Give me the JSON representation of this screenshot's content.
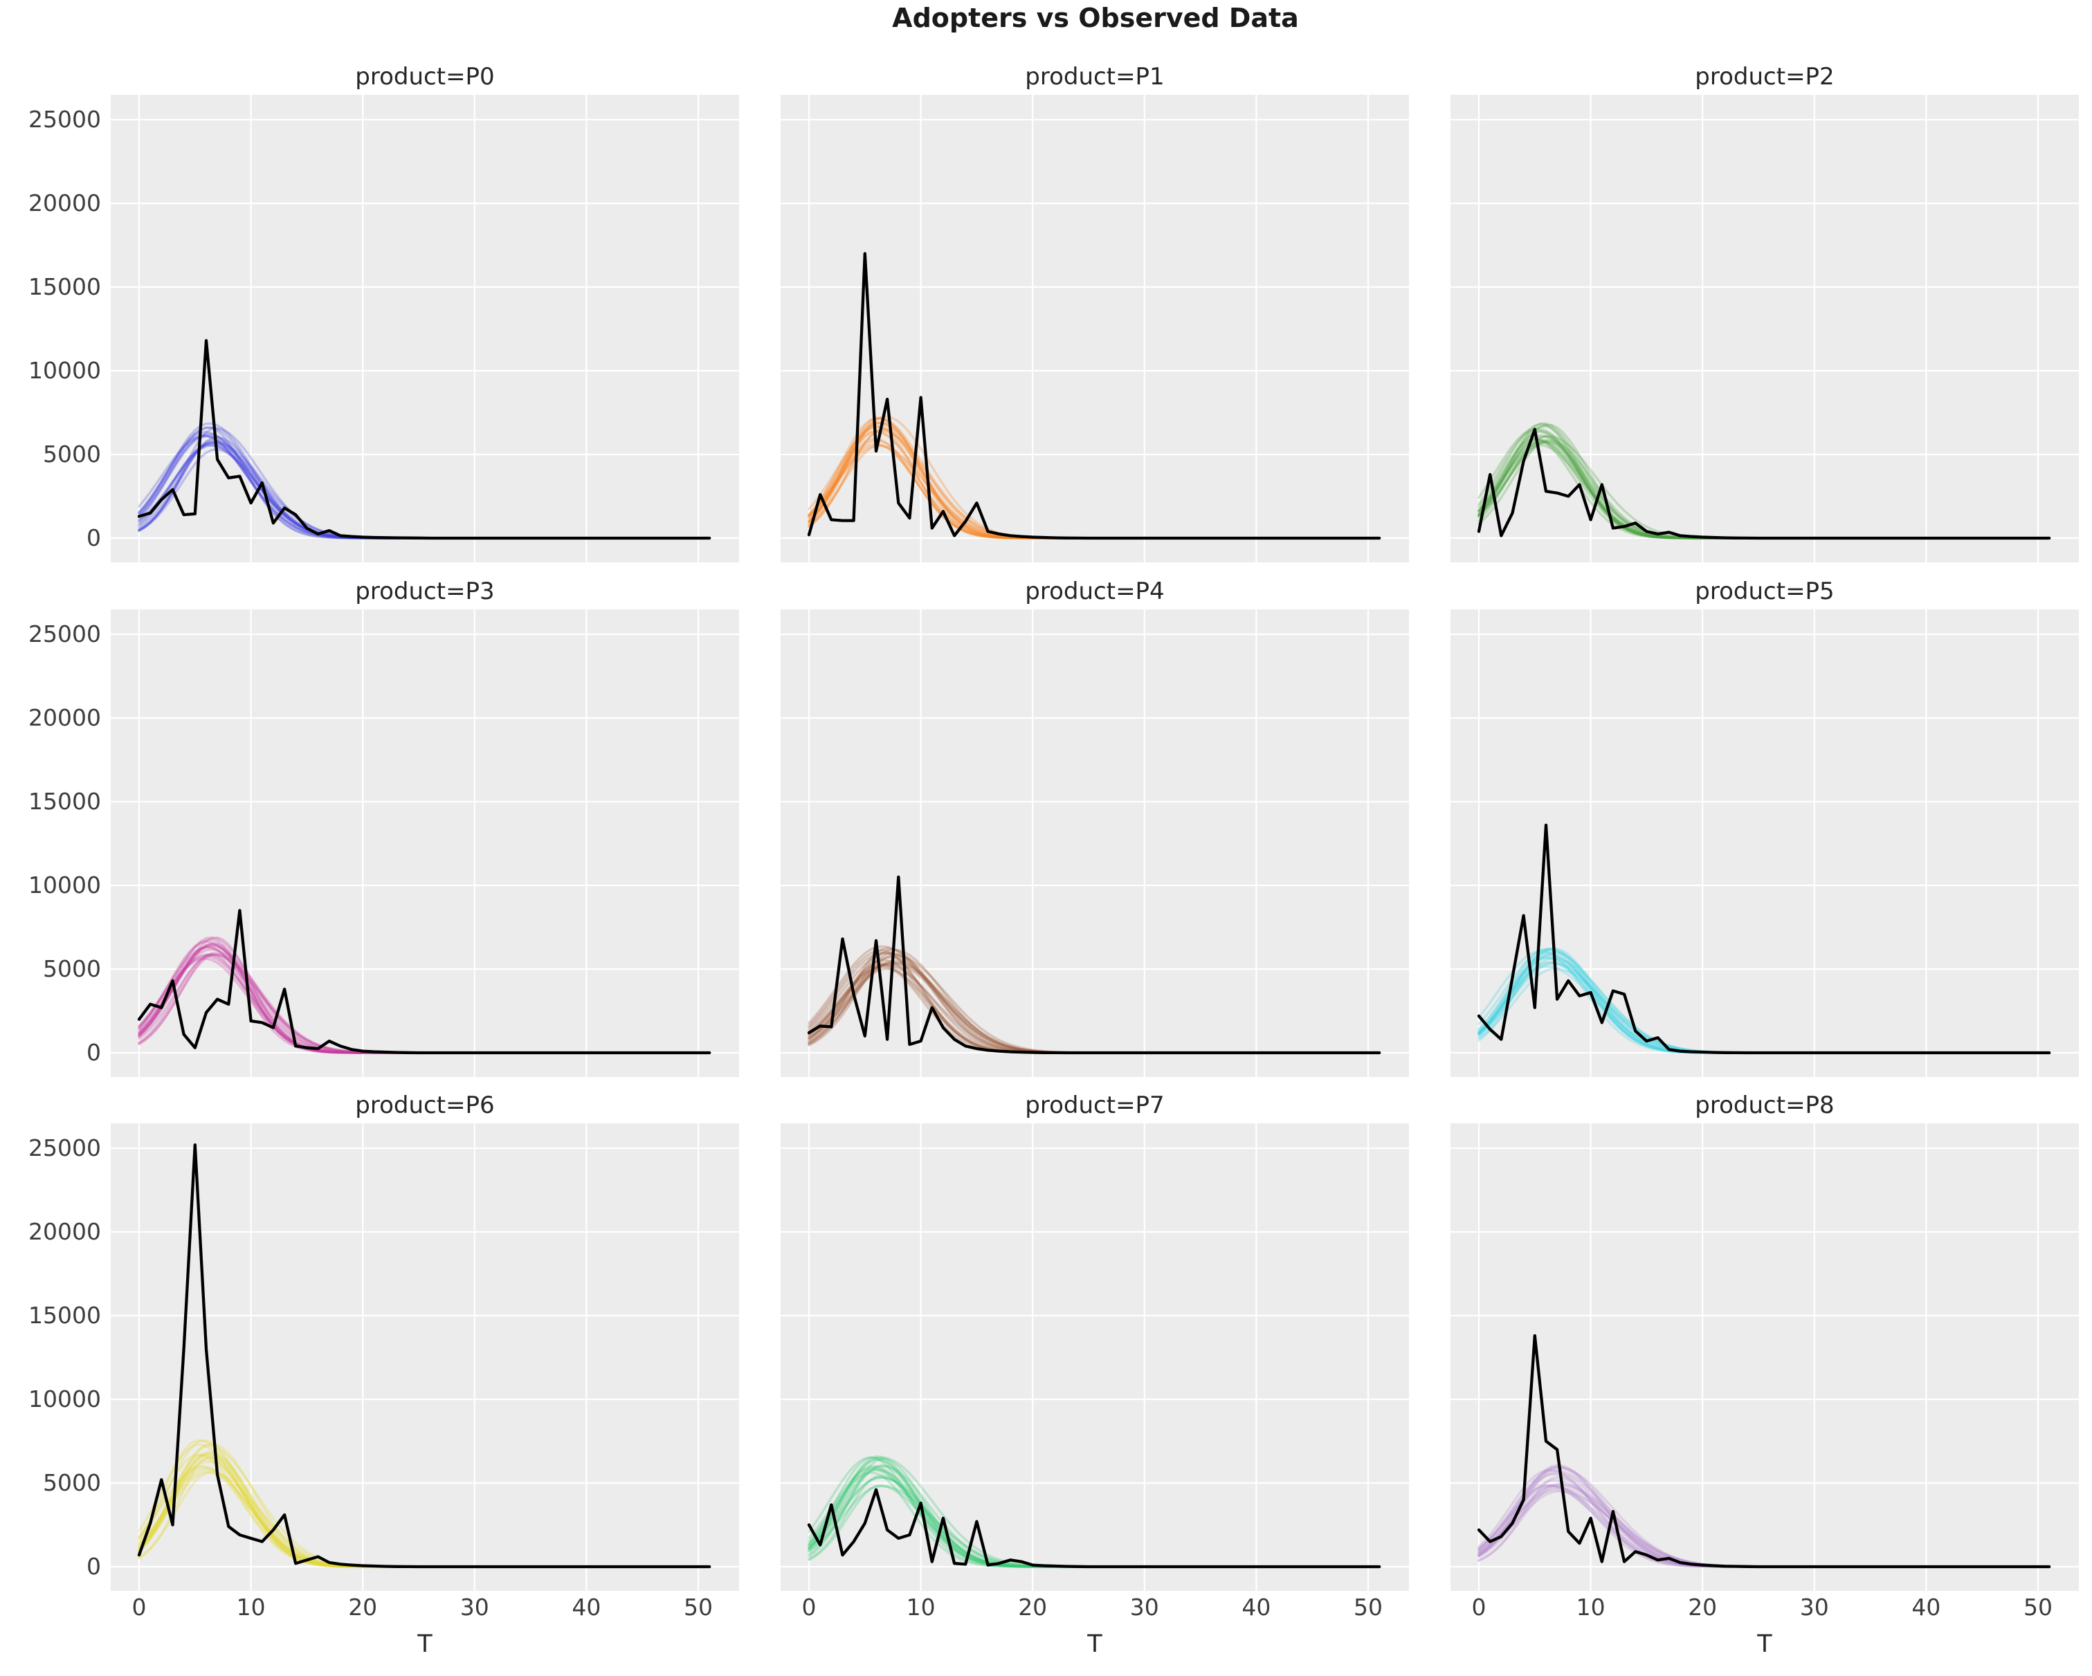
{
  "figure": {
    "title": "Adopters vs Observed Data"
  },
  "style": {
    "axes_bg": "#ececec",
    "grid_color": "#ffffff",
    "observed_color": "#000000",
    "title_color": "#1a1a1a",
    "tick_color": "#3c3c3c"
  },
  "chart_data": {
    "type": "line",
    "title": "Adopters vs Observed Data",
    "xlabel": "T",
    "ylabel": "",
    "x_ticks": [
      0,
      10,
      20,
      30,
      40,
      50
    ],
    "y_ticks": [
      0,
      5000,
      10000,
      15000,
      20000,
      25000
    ],
    "xlim": [
      -2.5,
      53.5
    ],
    "ylim": [
      0,
      26500
    ],
    "grid": true,
    "t_max": 51,
    "facets": [
      {
        "label": "product=P0",
        "color": "#4343e0",
        "observed": [
          1300,
          1500,
          2300,
          2900,
          1400,
          1450,
          11800,
          4700,
          3600,
          3700,
          2100,
          3300,
          900,
          1800,
          1400,
          600,
          250,
          450,
          150,
          100,
          60,
          40,
          30,
          20,
          15,
          10
        ],
        "model": {
          "n_samples": 18,
          "peak_t": 6.3,
          "peak_range": [
            5300,
            7100
          ],
          "sigma_left": 3.3,
          "sigma_right": 3.7
        }
      },
      {
        "label": "product=P1",
        "color": "#f8821c",
        "observed": [
          200,
          2600,
          1100,
          1050,
          1050,
          17000,
          5200,
          8300,
          2100,
          1200,
          8400,
          600,
          1600,
          150,
          1000,
          2100,
          400,
          250,
          150,
          100,
          60,
          40,
          20,
          10,
          5,
          0
        ],
        "model": {
          "n_samples": 18,
          "peak_t": 6.2,
          "peak_range": [
            5300,
            7300
          ],
          "sigma_left": 3.3,
          "sigma_right": 3.6
        }
      },
      {
        "label": "product=P2",
        "color": "#48a23c",
        "observed": [
          400,
          3800,
          150,
          1500,
          4600,
          6500,
          2800,
          2700,
          2500,
          3200,
          1100,
          3200,
          600,
          700,
          900,
          400,
          250,
          350,
          150,
          100,
          60,
          40,
          20,
          10,
          5,
          0
        ],
        "model": {
          "n_samples": 18,
          "peak_t": 5.6,
          "peak_range": [
            4900,
            6900
          ],
          "sigma_left": 3.2,
          "sigma_right": 3.6
        }
      },
      {
        "label": "product=P3",
        "color": "#c6399f",
        "observed": [
          2000,
          2900,
          2700,
          4300,
          1100,
          300,
          2400,
          3200,
          2900,
          8500,
          1900,
          1800,
          1500,
          3800,
          400,
          300,
          250,
          700,
          400,
          200,
          100,
          60,
          40,
          20,
          10,
          0
        ],
        "model": {
          "n_samples": 18,
          "peak_t": 6.4,
          "peak_range": [
            5300,
            7000
          ],
          "sigma_left": 3.4,
          "sigma_right": 3.6
        }
      },
      {
        "label": "product=P4",
        "color": "#975231",
        "observed": [
          1200,
          1600,
          1550,
          6800,
          3500,
          1000,
          6700,
          800,
          10500,
          500,
          700,
          2700,
          1500,
          800,
          400,
          250,
          150,
          100,
          60,
          40,
          20,
          10,
          5,
          0
        ],
        "model": {
          "n_samples": 18,
          "peak_t": 7.0,
          "peak_range": [
            4900,
            6400
          ],
          "sigma_left": 3.6,
          "sigma_right": 4.0
        }
      },
      {
        "label": "product=P5",
        "color": "#3fd4e4",
        "observed": [
          2200,
          1400,
          800,
          4500,
          8200,
          2700,
          13600,
          3200,
          4300,
          3400,
          3600,
          1800,
          3700,
          3500,
          1300,
          700,
          900,
          200,
          100,
          60,
          40,
          20,
          10,
          5,
          0
        ],
        "model": {
          "n_samples": 18,
          "peak_t": 6.2,
          "peak_range": [
            5000,
            6300
          ],
          "sigma_left": 3.4,
          "sigma_right": 4.0
        }
      },
      {
        "label": "product=P6",
        "color": "#e3d92f",
        "observed": [
          700,
          2600,
          5200,
          2500,
          13000,
          25200,
          13000,
          5500,
          2400,
          1900,
          1700,
          1500,
          2200,
          3100,
          200,
          400,
          600,
          250,
          150,
          100,
          60,
          40,
          20,
          10,
          5,
          0
        ],
        "model": {
          "n_samples": 18,
          "peak_t": 5.8,
          "peak_range": [
            5600,
            7600
          ],
          "sigma_left": 3.1,
          "sigma_right": 3.7
        }
      },
      {
        "label": "product=P7",
        "color": "#35ca74",
        "observed": [
          2500,
          1300,
          3700,
          700,
          1500,
          2600,
          4600,
          2200,
          1700,
          1900,
          3800,
          300,
          2900,
          200,
          150,
          2700,
          100,
          200,
          400,
          300,
          100,
          60,
          40,
          20,
          10,
          0
        ],
        "model": {
          "n_samples": 18,
          "peak_t": 6.0,
          "peak_range": [
            4800,
            6600
          ],
          "sigma_left": 3.2,
          "sigma_right": 3.9
        }
      },
      {
        "label": "product=P8",
        "color": "#b388cc",
        "observed": [
          2200,
          1500,
          1800,
          2600,
          4000,
          13800,
          7500,
          7000,
          2100,
          1400,
          2900,
          300,
          3300,
          300,
          900,
          700,
          400,
          500,
          250,
          150,
          100,
          60,
          30,
          20,
          10,
          0
        ],
        "model": {
          "n_samples": 18,
          "peak_t": 6.6,
          "peak_range": [
            4500,
            6200
          ],
          "sigma_left": 3.4,
          "sigma_right": 4.2
        }
      }
    ]
  }
}
